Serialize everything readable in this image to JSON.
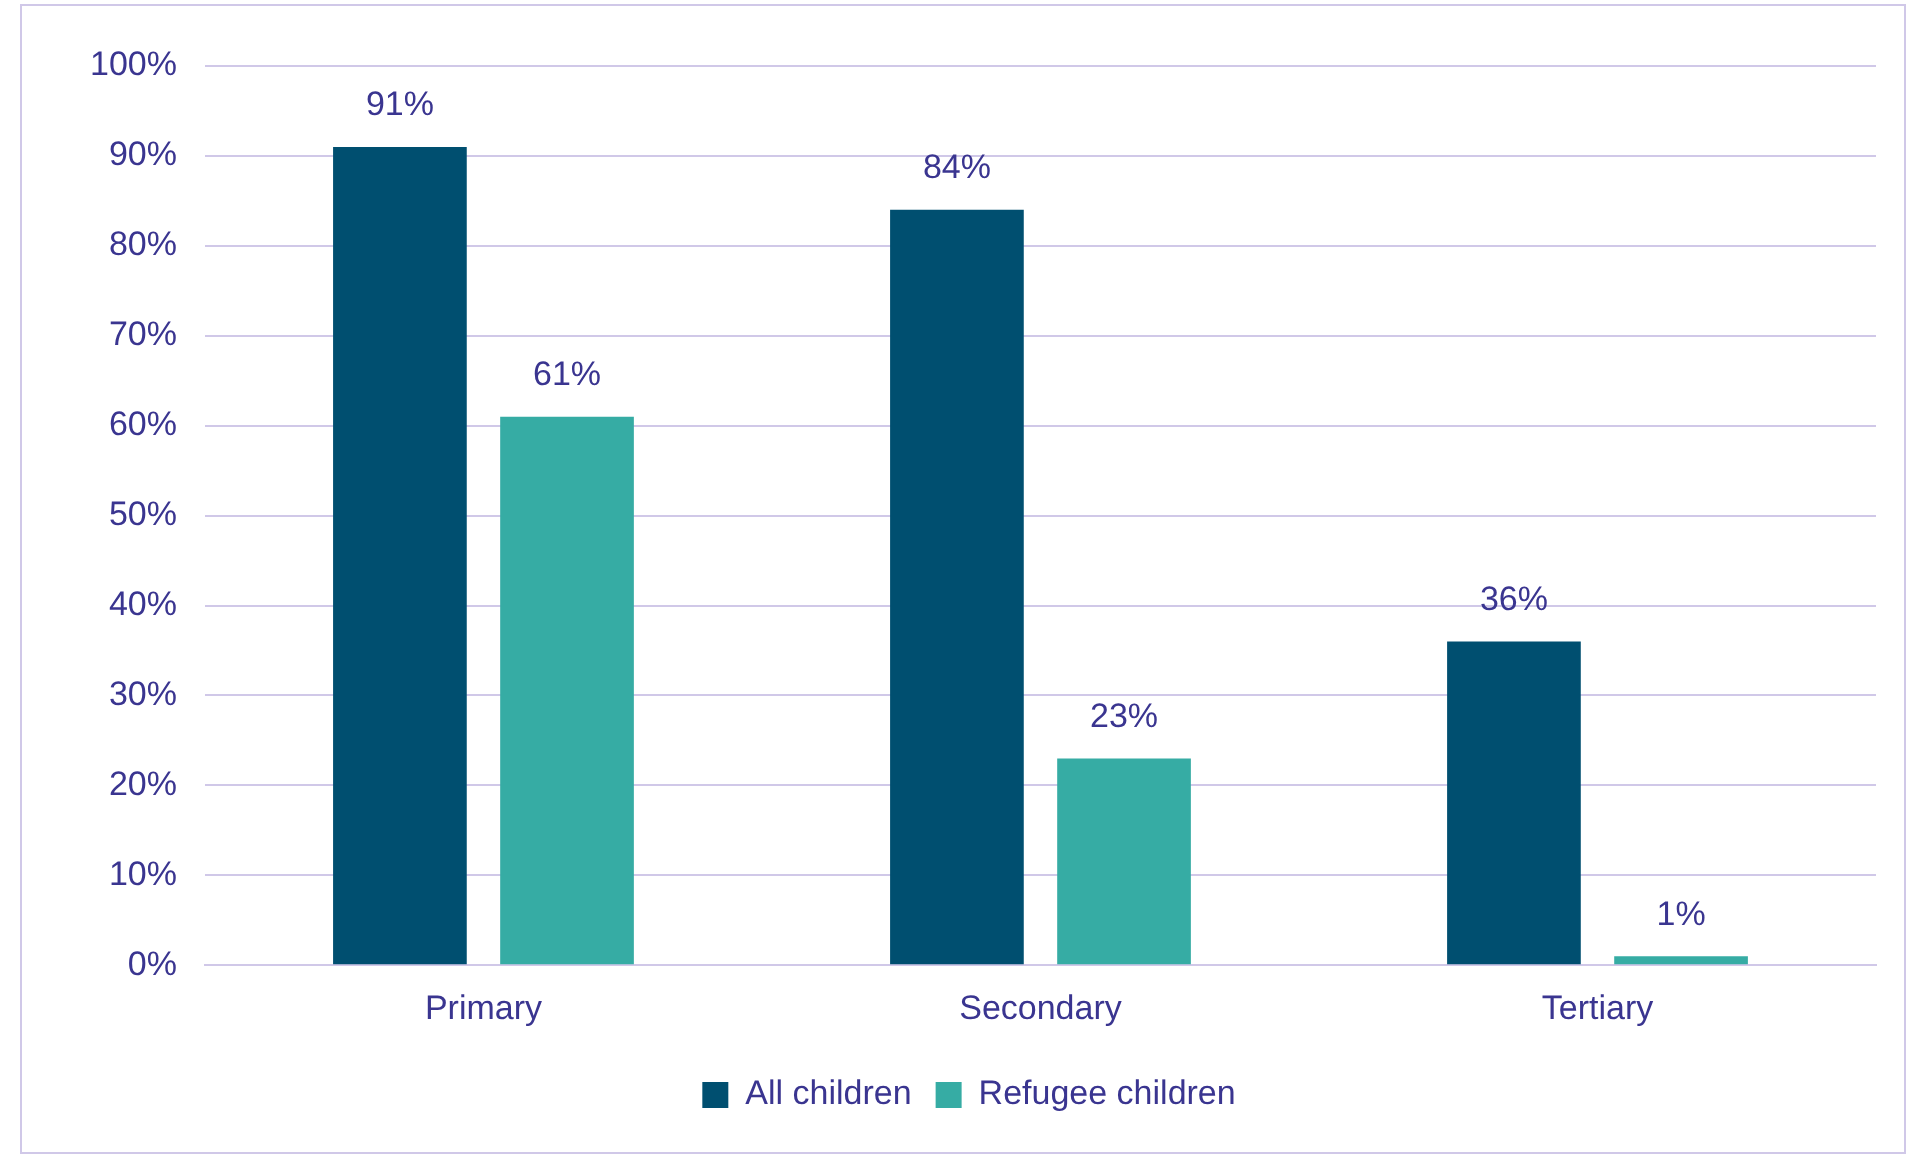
{
  "chart_data": {
    "type": "bar",
    "categories": [
      "Primary",
      "Secondary",
      "Tertiary"
    ],
    "series": [
      {
        "name": "All children",
        "color": "#004f70",
        "values": [
          91,
          84,
          36
        ],
        "value_labels": [
          "91%",
          "84%",
          "36%"
        ]
      },
      {
        "name": "Refugee children",
        "color": "#36aca4",
        "values": [
          61,
          23,
          1
        ],
        "value_labels": [
          "61%",
          "23%",
          "1%"
        ]
      }
    ],
    "ylim": [
      0,
      100
    ],
    "yticks": [
      {
        "value": 0,
        "label": "0%"
      },
      {
        "value": 10,
        "label": "10%"
      },
      {
        "value": 20,
        "label": "20%"
      },
      {
        "value": 30,
        "label": "30%"
      },
      {
        "value": 40,
        "label": "40%"
      },
      {
        "value": 50,
        "label": "50%"
      },
      {
        "value": 60,
        "label": "60%"
      },
      {
        "value": 70,
        "label": "70%"
      },
      {
        "value": 80,
        "label": "80%"
      },
      {
        "value": 90,
        "label": "90%"
      },
      {
        "value": 100,
        "label": "100%"
      }
    ],
    "grid": "y",
    "legend": "bottom"
  }
}
